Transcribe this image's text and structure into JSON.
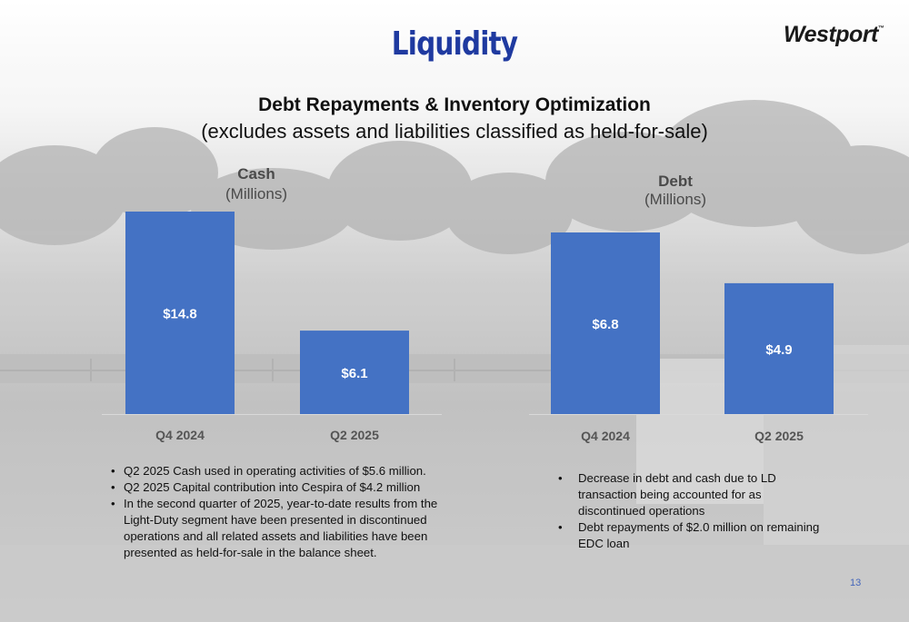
{
  "title": "Liquidity",
  "logo": {
    "text": "Westport",
    "tm": "™"
  },
  "subtitle": "Debt Repayments & Inventory Optimization",
  "subtitle_note": "(excludes assets and liabilities classified as held-for-sale)",
  "colors": {
    "bar": "#4472c4",
    "title": "#1f3aa0",
    "bar_label": "#ffffff"
  },
  "chart_data": [
    {
      "type": "bar",
      "title": "Cash",
      "subtitle": "(Millions)",
      "categories": [
        "Q4 2024",
        "Q2 2025"
      ],
      "values": [
        14.8,
        6.1
      ],
      "data_labels": [
        "$14.8",
        "$6.1"
      ],
      "ylim": [
        0,
        14.8
      ],
      "grid": false,
      "legend": "none"
    },
    {
      "type": "bar",
      "title": "Debt",
      "subtitle": "(Millions)",
      "categories": [
        "Q4 2024",
        "Q2 2025"
      ],
      "values": [
        6.8,
        4.9
      ],
      "data_labels": [
        "$6.8",
        "$4.9"
      ],
      "ylim": [
        0,
        6.8
      ],
      "grid": false,
      "legend": "none"
    }
  ],
  "bullets_left": [
    "Q2 2025 Cash used in operating activities of $5.6 million.",
    "Q2 2025 Capital contribution into Cespira of $4.2 million",
    "In the second quarter of 2025, year-to-date results from the Light-Duty segment have been presented in discontinued operations and all related assets and liabilities have been presented as held-for-sale in the balance sheet."
  ],
  "bullets_right": [
    "Decrease in debt and cash due to LD transaction being accounted for as discontinued operations",
    "Debt repayments of $2.0 million on remaining EDC loan"
  ],
  "page_number": "13"
}
